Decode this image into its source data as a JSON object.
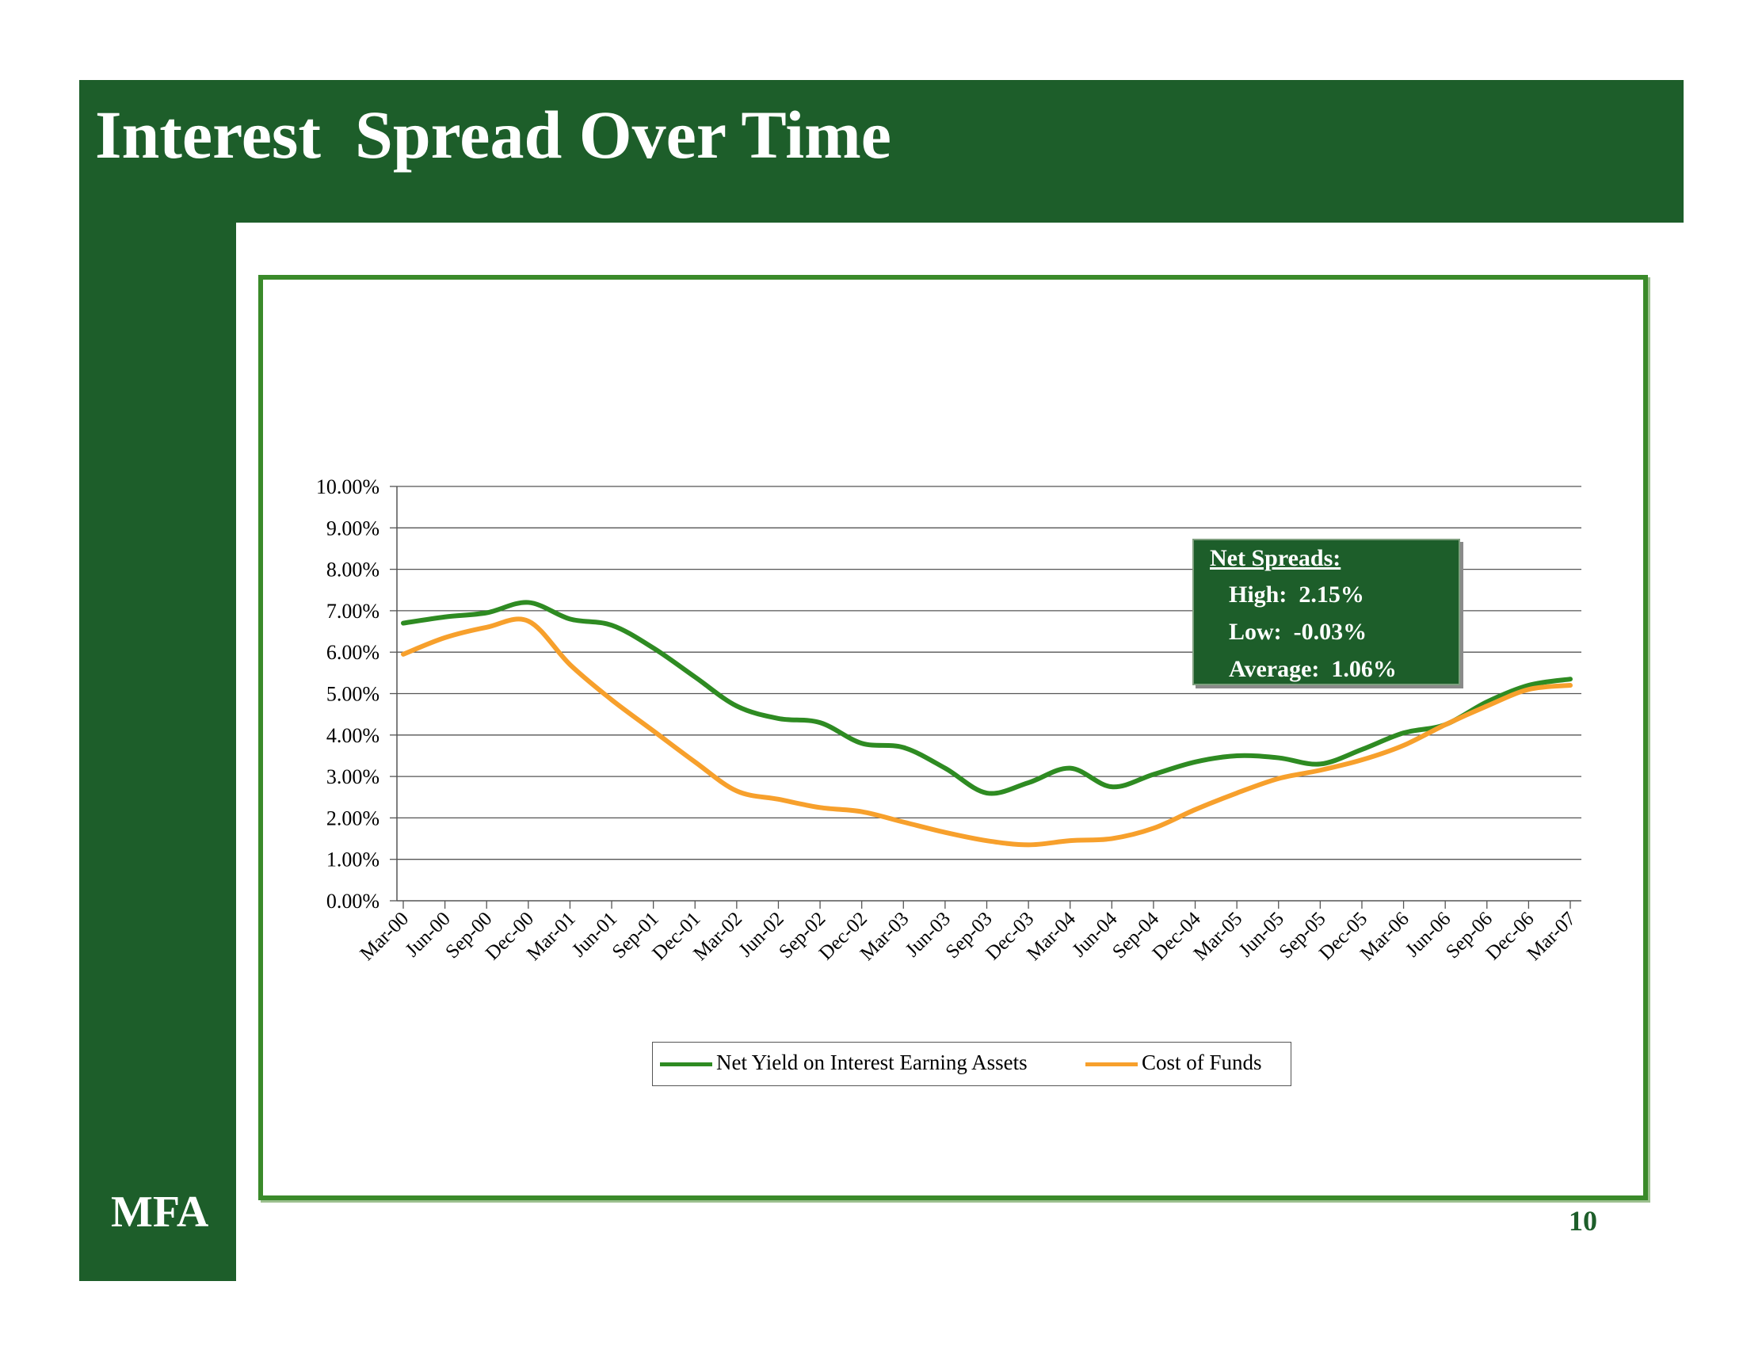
{
  "title": "Interest  Spread Over Time",
  "logo": "MFA",
  "page_number": "10",
  "colors": {
    "brand_green": "#1d5e2a",
    "frame_green": "#3a8a2a",
    "net_yield_line": "#2e8b22",
    "cost_of_funds_line": "#f7a02c"
  },
  "net_spreads": {
    "title": "Net Spreads:",
    "high": "High:  2.15%",
    "low": "Low:  -0.03%",
    "average": "Average:  1.06%"
  },
  "chart_data": {
    "type": "line",
    "x": [
      "Mar-00",
      "Jun-00",
      "Sep-00",
      "Dec-00",
      "Mar-01",
      "Jun-01",
      "Sep-01",
      "Dec-01",
      "Mar-02",
      "Jun-02",
      "Sep-02",
      "Dec-02",
      "Mar-03",
      "Jun-03",
      "Sep-03",
      "Dec-03",
      "Mar-04",
      "Jun-04",
      "Sep-04",
      "Dec-04",
      "Mar-05",
      "Jun-05",
      "Sep-05",
      "Dec-05",
      "Mar-06",
      "Jun-06",
      "Sep-06",
      "Dec-06",
      "Mar-07"
    ],
    "y_ticks": [
      "0.00%",
      "1.00%",
      "2.00%",
      "3.00%",
      "4.00%",
      "5.00%",
      "6.00%",
      "7.00%",
      "8.00%",
      "9.00%",
      "10.00%"
    ],
    "ylim": [
      0,
      10
    ],
    "grid": true,
    "legend_position": "bottom",
    "series": [
      {
        "name": "Net Yield on Interest Earning Assets",
        "color": "#2e8b22",
        "values": [
          6.7,
          6.85,
          6.95,
          7.2,
          6.8,
          6.65,
          6.1,
          5.4,
          4.7,
          4.4,
          4.3,
          3.8,
          3.7,
          3.2,
          2.6,
          2.85,
          3.2,
          2.75,
          3.05,
          3.35,
          3.5,
          3.45,
          3.3,
          3.65,
          4.05,
          4.25,
          4.8,
          5.2,
          5.35
        ]
      },
      {
        "name": "Cost of Funds",
        "color": "#f7a02c",
        "values": [
          5.95,
          6.35,
          6.6,
          6.75,
          5.7,
          4.85,
          4.1,
          3.35,
          2.65,
          2.45,
          2.25,
          2.15,
          1.9,
          1.65,
          1.45,
          1.35,
          1.45,
          1.5,
          1.75,
          2.2,
          2.6,
          2.95,
          3.15,
          3.4,
          3.75,
          4.25,
          4.7,
          5.1,
          5.2
        ]
      }
    ]
  }
}
